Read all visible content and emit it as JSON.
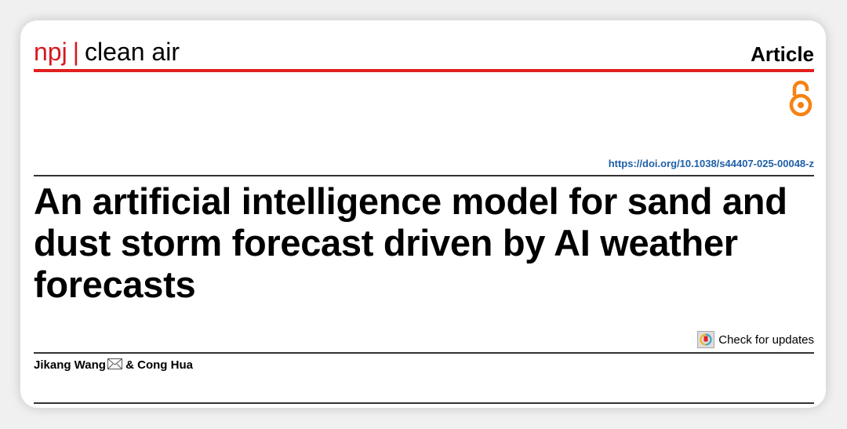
{
  "header": {
    "journal_prefix": "npj",
    "separator": "|",
    "journal_name": "clean air",
    "article_type": "Article",
    "accent_color": "#e0201f",
    "open_access_icon": "open-access-lock-icon"
  },
  "doi": "https://doi.org/10.1038/s44407-025-00048-z",
  "title": "An artificial intelligence model for sand and dust storm forecast driven by AI weather forecasts",
  "check_updates": "Check for updates",
  "authors": {
    "first": "Jikang Wang",
    "rest": " & Cong Hua",
    "email_icon": "envelope-icon"
  }
}
